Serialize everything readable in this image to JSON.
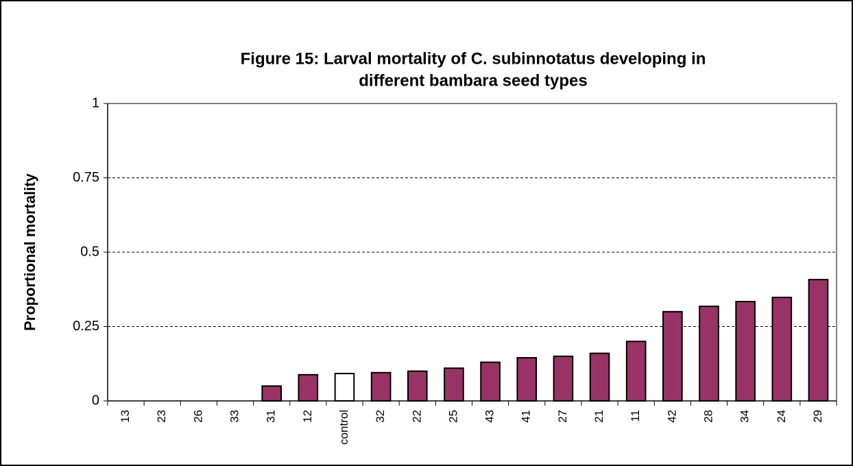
{
  "chart_data": {
    "type": "bar",
    "title": [
      "Figure 15: Larval mortality of C. subinnotatus developing in",
      "different bambara seed types"
    ],
    "y_label": "Proportional mortality",
    "categories": [
      "13",
      "23",
      "26",
      "33",
      "31",
      "12",
      "control",
      "32",
      "22",
      "25",
      "43",
      "41",
      "27",
      "21",
      "11",
      "42",
      "28",
      "34",
      "24",
      "29"
    ],
    "values": [
      0,
      0,
      0,
      0,
      0.05,
      0.088,
      0.092,
      0.095,
      0.1,
      0.11,
      0.13,
      0.145,
      0.15,
      0.16,
      0.2,
      0.3,
      0.318,
      0.334,
      0.348,
      0.408
    ],
    "colors": [
      "#993366",
      "#993366",
      "#993366",
      "#993366",
      "#993366",
      "#993366",
      "#ffffff",
      "#993366",
      "#993366",
      "#993366",
      "#993366",
      "#993366",
      "#993366",
      "#993366",
      "#993366",
      "#993366",
      "#993366",
      "#993366",
      "#993366",
      "#993366"
    ],
    "ylim": [
      0,
      1
    ],
    "yticks": [
      0,
      0.25,
      0.5,
      0.75,
      1
    ],
    "grid": true
  }
}
